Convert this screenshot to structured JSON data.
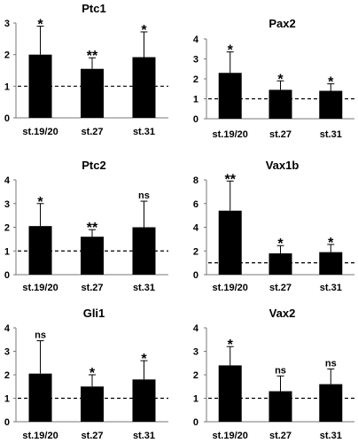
{
  "chart_data": [
    {
      "type": "bar",
      "title": "Ptc1",
      "categories": [
        "st.19/20",
        "st.27",
        "st.31"
      ],
      "values": [
        2.0,
        1.55,
        1.92
      ],
      "errors": [
        0.9,
        0.35,
        0.8
      ],
      "significance": [
        "*",
        "**",
        "*"
      ],
      "ylim": [
        0,
        3
      ],
      "yticks": [
        "0",
        "1",
        "2",
        "3"
      ],
      "reference_line": 1
    },
    {
      "type": "bar",
      "title": "Pax2",
      "categories": [
        "st.19/20",
        "st.27",
        "st.31"
      ],
      "values": [
        2.3,
        1.45,
        1.4
      ],
      "errors": [
        1.05,
        0.45,
        0.35
      ],
      "significance": [
        "*",
        "*",
        "*"
      ],
      "ylim": [
        0,
        4
      ],
      "yticks": [
        "0",
        "1",
        "2",
        "3",
        "4"
      ],
      "reference_line": 1
    },
    {
      "type": "bar",
      "title": "Ptc2",
      "categories": [
        "st.19/20",
        "st.27",
        "st.31"
      ],
      "values": [
        2.05,
        1.6,
        2.0
      ],
      "errors": [
        0.95,
        0.3,
        1.1
      ],
      "significance": [
        "*",
        "**",
        "ns"
      ],
      "ylim": [
        0,
        4
      ],
      "yticks": [
        "0",
        "1",
        "2",
        "3",
        "4"
      ],
      "reference_line": 1
    },
    {
      "type": "bar",
      "title": "Vax1b",
      "categories": [
        "st.19/20",
        "st.27",
        "st.31"
      ],
      "values": [
        5.4,
        1.8,
        1.9
      ],
      "errors": [
        2.5,
        0.65,
        0.65
      ],
      "significance": [
        "**",
        "*",
        "*"
      ],
      "ylim": [
        0,
        8
      ],
      "yticks": [
        "0",
        "2",
        "4",
        "6",
        "8"
      ],
      "reference_line": 1
    },
    {
      "type": "bar",
      "title": "Gli1",
      "categories": [
        "st.19/20",
        "st.27",
        "st.31"
      ],
      "values": [
        2.05,
        1.5,
        1.8
      ],
      "errors": [
        1.4,
        0.5,
        0.8
      ],
      "significance": [
        "ns",
        "*",
        "*"
      ],
      "ylim": [
        0,
        4
      ],
      "yticks": [
        "0",
        "1",
        "2",
        "3",
        "4"
      ],
      "reference_line": 1
    },
    {
      "type": "bar",
      "title": "Vax2",
      "categories": [
        "st.19/20",
        "st.27",
        "st.31"
      ],
      "values": [
        2.4,
        1.3,
        1.6
      ],
      "errors": [
        0.8,
        0.65,
        0.65
      ],
      "significance": [
        "*",
        "ns",
        "ns"
      ],
      "ylim": [
        0,
        4
      ],
      "yticks": [
        "0",
        "1",
        "2",
        "3",
        "4"
      ],
      "reference_line": 1
    }
  ]
}
